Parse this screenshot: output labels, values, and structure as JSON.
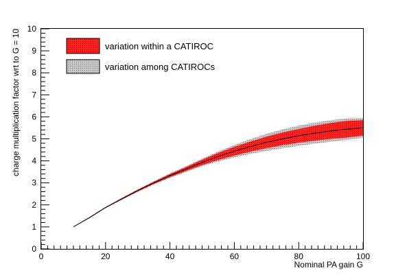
{
  "chart_data": {
    "type": "area",
    "xlabel": "Nominal PA gain G",
    "ylabel": "charge multiplication factor wrt to  G = 10",
    "xlim": [
      0,
      100
    ],
    "ylim": [
      0,
      10
    ],
    "x_ticks": [
      "0",
      "20",
      "40",
      "60",
      "80",
      "100"
    ],
    "y_ticks": [
      "0",
      "1",
      "2",
      "3",
      "4",
      "5",
      "6",
      "7",
      "8",
      "9",
      "10"
    ],
    "grid": false,
    "legend_position": "top-left",
    "x": [
      10,
      15,
      20,
      25,
      30,
      35,
      40,
      45,
      50,
      55,
      60,
      65,
      70,
      75,
      80,
      85,
      90,
      95,
      100
    ],
    "series": [
      {
        "name": "variation within a CATIROC",
        "color": "#ff0000",
        "center": [
          1.0,
          1.42,
          1.88,
          2.27,
          2.65,
          3.0,
          3.33,
          3.63,
          3.93,
          4.2,
          4.44,
          4.65,
          4.84,
          5.0,
          5.14,
          5.26,
          5.36,
          5.44,
          5.5
        ],
        "upper": [
          1.0,
          1.44,
          1.9,
          2.3,
          2.69,
          3.05,
          3.4,
          3.72,
          4.05,
          4.36,
          4.64,
          4.88,
          5.1,
          5.29,
          5.45,
          5.6,
          5.72,
          5.82,
          5.85
        ],
        "lower": [
          1.0,
          1.4,
          1.86,
          2.24,
          2.61,
          2.95,
          3.26,
          3.54,
          3.81,
          4.04,
          4.24,
          4.42,
          4.58,
          4.71,
          4.83,
          4.92,
          5.0,
          5.06,
          5.15
        ]
      },
      {
        "name": "variation among CATIROCs",
        "color": "#a0a0a0",
        "upper": [
          1.0,
          1.45,
          1.91,
          2.32,
          2.71,
          3.08,
          3.43,
          3.76,
          4.1,
          4.43,
          4.73,
          4.99,
          5.23,
          5.43,
          5.6,
          5.74,
          5.85,
          5.93,
          5.95
        ],
        "lower": [
          1.0,
          1.39,
          1.85,
          2.22,
          2.59,
          2.92,
          3.23,
          3.5,
          3.76,
          3.97,
          4.15,
          4.31,
          4.45,
          4.57,
          4.68,
          4.78,
          4.87,
          4.95,
          5.05
        ]
      }
    ]
  }
}
